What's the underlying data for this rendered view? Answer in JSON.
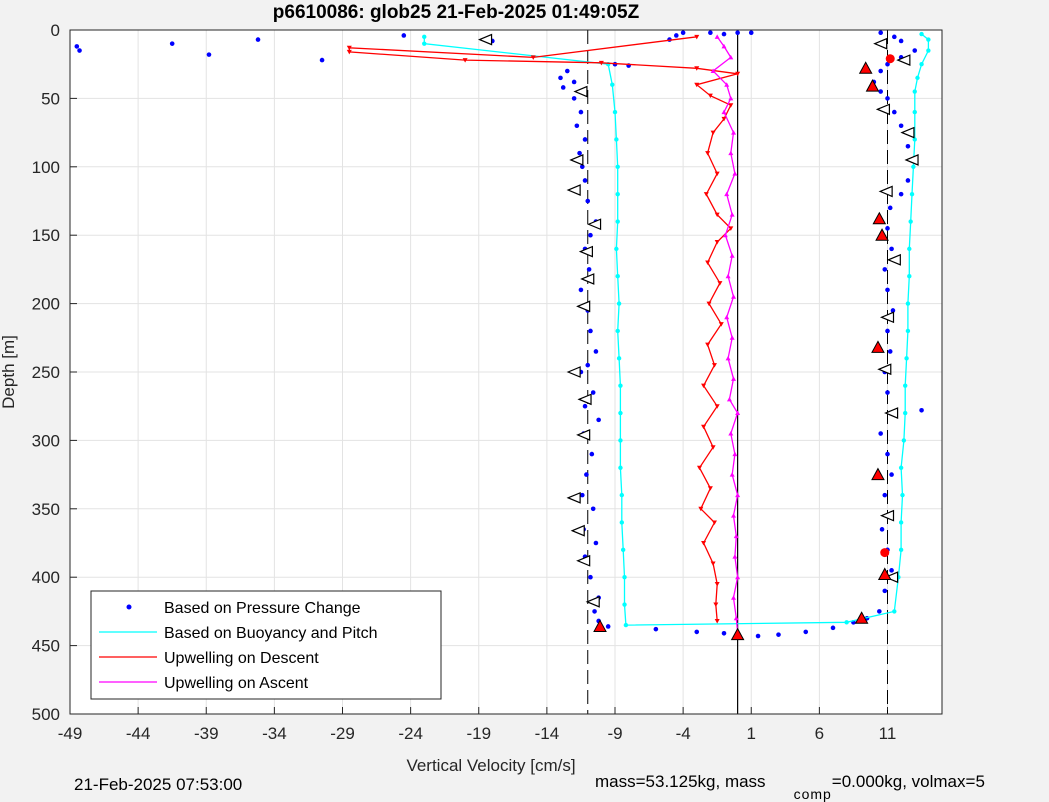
{
  "chart_data": {
    "type": "scatter",
    "title": "p6610086: glob25 21-Feb-2025 01:49:05Z",
    "xlabel": "Vertical Velocity [cm/s]",
    "ylabel": "Depth [m]",
    "xlim": [
      -49,
      15
    ],
    "ylim": [
      0,
      500
    ],
    "y_reversed": true,
    "grid": true,
    "xticks": [
      -49,
      -44,
      -39,
      -34,
      -29,
      -24,
      -19,
      -14,
      -9,
      -4,
      1,
      6,
      11
    ],
    "yticks": [
      0,
      50,
      100,
      150,
      200,
      250,
      300,
      350,
      400,
      450,
      500
    ],
    "reference_lines": {
      "dashed_x": [
        -11,
        11
      ],
      "solid_x": [
        0
      ]
    },
    "legend": {
      "location": "bottom-left",
      "entries": [
        {
          "label": "Based on Pressure Change",
          "color": "#0000ff",
          "marker": "dot"
        },
        {
          "label": "Based on Buoyancy and Pitch",
          "color": "#00ffff",
          "marker": "line"
        },
        {
          "label": "Upwelling on Descent",
          "color": "#ff0000",
          "marker": "line"
        },
        {
          "label": "Upwelling on Ascent",
          "color": "#ff00ff",
          "marker": "line"
        }
      ]
    },
    "series": [
      {
        "name": "Based on Pressure Change",
        "color": "#0000ff",
        "points": [
          [
            -48.5,
            12
          ],
          [
            -48.3,
            15
          ],
          [
            -41.5,
            10
          ],
          [
            -38.8,
            18
          ],
          [
            -35.2,
            7
          ],
          [
            -30.5,
            22
          ],
          [
            -24.5,
            4
          ],
          [
            -18,
            8
          ],
          [
            -12.5,
            30
          ],
          [
            -13,
            35
          ],
          [
            -12.8,
            42
          ],
          [
            -12,
            38
          ],
          [
            -11.5,
            45
          ],
          [
            -12,
            50
          ],
          [
            -11.5,
            60
          ],
          [
            -11.8,
            70
          ],
          [
            -11.2,
            80
          ],
          [
            -11.6,
            90
          ],
          [
            -11.4,
            100
          ],
          [
            -11.2,
            110
          ],
          [
            -11.8,
            117
          ],
          [
            -11,
            125
          ],
          [
            -10.4,
            140
          ],
          [
            -10.8,
            150
          ],
          [
            -11.2,
            160
          ],
          [
            -10.9,
            175
          ],
          [
            -11.5,
            190
          ],
          [
            -11.0,
            205
          ],
          [
            -10.8,
            220
          ],
          [
            -10.4,
            235
          ],
          [
            -11.0,
            245
          ],
          [
            -11.5,
            250
          ],
          [
            -10.6,
            265
          ],
          [
            -11.2,
            275
          ],
          [
            -10.2,
            285
          ],
          [
            -11.3,
            295
          ],
          [
            -10.7,
            310
          ],
          [
            -11.1,
            325
          ],
          [
            -11.4,
            340
          ],
          [
            -10.6,
            350
          ],
          [
            -11.3,
            365
          ],
          [
            -10.4,
            375
          ],
          [
            -11.2,
            385
          ],
          [
            -10.8,
            400
          ],
          [
            -10.2,
            415
          ],
          [
            -10.5,
            425
          ],
          [
            -10.2,
            432
          ],
          [
            -9.5,
            436
          ],
          [
            -6,
            438
          ],
          [
            -3,
            440
          ],
          [
            -1,
            441
          ],
          [
            0,
            443
          ],
          [
            1.5,
            443
          ],
          [
            3,
            442
          ],
          [
            5,
            440
          ],
          [
            7,
            437
          ],
          [
            8.5,
            433
          ],
          [
            9.5,
            430
          ],
          [
            10.4,
            425
          ],
          [
            10.8,
            410
          ],
          [
            11.3,
            395
          ],
          [
            11.0,
            380
          ],
          [
            10.6,
            365
          ],
          [
            11.2,
            355
          ],
          [
            10.8,
            340
          ],
          [
            11.3,
            325
          ],
          [
            11.0,
            310
          ],
          [
            10.5,
            295
          ],
          [
            11.2,
            280
          ],
          [
            11.0,
            265
          ],
          [
            10.8,
            250
          ],
          [
            11.2,
            235
          ],
          [
            11.0,
            220
          ],
          [
            11.4,
            205
          ],
          [
            11.0,
            190
          ],
          [
            10.8,
            175
          ],
          [
            11.3,
            160
          ],
          [
            11.0,
            145
          ],
          [
            11.2,
            130
          ],
          [
            12,
            120
          ],
          [
            12.5,
            110
          ],
          [
            13,
            95
          ],
          [
            12.5,
            85
          ],
          [
            12,
            70
          ],
          [
            11.5,
            60
          ],
          [
            11.0,
            50
          ],
          [
            10.5,
            45
          ],
          [
            10,
            38
          ],
          [
            10.5,
            30
          ],
          [
            11,
            25
          ],
          [
            12,
            20
          ],
          [
            13,
            15
          ],
          [
            12,
            8
          ],
          [
            11.5,
            5
          ],
          [
            10.5,
            2
          ],
          [
            13.5,
            278
          ],
          [
            -4,
            2
          ],
          [
            -2,
            2
          ],
          [
            -1,
            3
          ],
          [
            0,
            2
          ],
          [
            1,
            2
          ],
          [
            -5,
            7
          ],
          [
            -4.5,
            4
          ],
          [
            -9,
            25
          ],
          [
            -8,
            26
          ]
        ]
      },
      {
        "name": "Based on Buoyancy and Pitch",
        "color": "#00ffff",
        "points": [
          [
            -23,
            5
          ],
          [
            -23,
            10
          ],
          [
            -9.5,
            25
          ],
          [
            -9.2,
            40
          ],
          [
            -9.0,
            60
          ],
          [
            -8.9,
            80
          ],
          [
            -8.8,
            100
          ],
          [
            -8.8,
            120
          ],
          [
            -8.8,
            140
          ],
          [
            -8.9,
            160
          ],
          [
            -8.8,
            180
          ],
          [
            -8.7,
            200
          ],
          [
            -8.8,
            220
          ],
          [
            -8.7,
            240
          ],
          [
            -8.6,
            260
          ],
          [
            -8.6,
            280
          ],
          [
            -8.6,
            300
          ],
          [
            -8.6,
            320
          ],
          [
            -8.5,
            340
          ],
          [
            -8.5,
            360
          ],
          [
            -8.4,
            380
          ],
          [
            -8.3,
            400
          ],
          [
            -8.3,
            420
          ],
          [
            -8.2,
            435
          ],
          [
            8.0,
            433
          ],
          [
            11.5,
            425
          ],
          [
            11.8,
            400
          ],
          [
            12.0,
            380
          ],
          [
            12.0,
            360
          ],
          [
            12.1,
            340
          ],
          [
            12.0,
            320
          ],
          [
            12.2,
            300
          ],
          [
            12.3,
            280
          ],
          [
            12.3,
            260
          ],
          [
            12.4,
            240
          ],
          [
            12.5,
            220
          ],
          [
            12.5,
            200
          ],
          [
            12.6,
            180
          ],
          [
            12.6,
            160
          ],
          [
            12.7,
            140
          ],
          [
            12.8,
            120
          ],
          [
            12.9,
            100
          ],
          [
            13.0,
            80
          ],
          [
            13.0,
            60
          ],
          [
            13.0,
            45
          ],
          [
            13.2,
            35
          ],
          [
            13.5,
            25
          ],
          [
            14,
            15
          ],
          [
            14,
            7
          ],
          [
            13.5,
            3
          ]
        ]
      },
      {
        "name": "Upwelling on Descent",
        "color": "#ff0000",
        "points": [
          [
            -3,
            5
          ],
          [
            -15,
            20
          ],
          [
            -28.5,
            13
          ],
          [
            -28.5,
            16
          ],
          [
            -20,
            22
          ],
          [
            -10,
            24
          ],
          [
            -3,
            28
          ],
          [
            0,
            32
          ],
          [
            -3,
            40
          ],
          [
            -2,
            48
          ],
          [
            -0.5,
            55
          ],
          [
            -1,
            65
          ],
          [
            -1.8,
            75
          ],
          [
            -2.2,
            90
          ],
          [
            -1.5,
            105
          ],
          [
            -2.3,
            120
          ],
          [
            -1.5,
            135
          ],
          [
            -0.5,
            145
          ],
          [
            -1.5,
            155
          ],
          [
            -2.2,
            170
          ],
          [
            -1.3,
            185
          ],
          [
            -2.1,
            200
          ],
          [
            -1.2,
            215
          ],
          [
            -2.2,
            230
          ],
          [
            -1.7,
            245
          ],
          [
            -2.5,
            260
          ],
          [
            -1.5,
            275
          ],
          [
            -2.5,
            290
          ],
          [
            -1.8,
            305
          ],
          [
            -2.8,
            320
          ],
          [
            -2.0,
            335
          ],
          [
            -2.7,
            350
          ],
          [
            -1.7,
            360
          ],
          [
            -2.5,
            375
          ],
          [
            -1.8,
            390
          ],
          [
            -1.5,
            405
          ],
          [
            -1.6,
            420
          ],
          [
            -1.5,
            432
          ]
        ]
      },
      {
        "name": "Upwelling on Ascent",
        "color": "#ff00ff",
        "points": [
          [
            -1.5,
            5
          ],
          [
            -1.0,
            12
          ],
          [
            -0.5,
            20
          ],
          [
            -1.8,
            30
          ],
          [
            -0.8,
            40
          ],
          [
            -0.5,
            50
          ],
          [
            -1.0,
            60
          ],
          [
            -0.3,
            75
          ],
          [
            -0.5,
            90
          ],
          [
            -0.2,
            105
          ],
          [
            -0.8,
            120
          ],
          [
            -0.4,
            135
          ],
          [
            -0.9,
            150
          ],
          [
            -0.4,
            165
          ],
          [
            -0.7,
            180
          ],
          [
            -0.3,
            195
          ],
          [
            -0.8,
            210
          ],
          [
            -0.4,
            225
          ],
          [
            -0.7,
            240
          ],
          [
            -0.3,
            255
          ],
          [
            -0.6,
            270
          ],
          [
            0,
            280
          ],
          [
            -0.5,
            295
          ],
          [
            -0.2,
            310
          ],
          [
            -0.4,
            325
          ],
          [
            0,
            340
          ],
          [
            -0.3,
            355
          ],
          [
            -0.1,
            370
          ],
          [
            -0.2,
            385
          ],
          [
            0,
            400
          ],
          [
            -0.3,
            415
          ],
          [
            -0.1,
            430
          ],
          [
            0,
            440
          ]
        ]
      }
    ],
    "markers": [
      {
        "shape": "triangle-left",
        "color": "#000000",
        "points": [
          [
            -18.5,
            7
          ],
          [
            -11.5,
            45
          ],
          [
            -11.8,
            95
          ],
          [
            -12,
            117
          ],
          [
            -10.5,
            142
          ],
          [
            -11.1,
            162
          ],
          [
            -11.0,
            182
          ],
          [
            -11.3,
            202
          ],
          [
            -12,
            250
          ],
          [
            -11.2,
            270
          ],
          [
            -11.3,
            296
          ],
          [
            -12,
            342
          ],
          [
            -11.7,
            366
          ],
          [
            -11.3,
            388
          ],
          [
            -10.6,
            418
          ],
          [
            10.7,
            58
          ],
          [
            12.5,
            75
          ],
          [
            12.8,
            95
          ],
          [
            10.9,
            118
          ],
          [
            11.5,
            168
          ],
          [
            11.0,
            210
          ],
          [
            10.8,
            248
          ],
          [
            11.3,
            280
          ],
          [
            11.0,
            355
          ],
          [
            11.3,
            400
          ],
          [
            10.5,
            10
          ],
          [
            12.2,
            22
          ]
        ]
      },
      {
        "shape": "triangle-up",
        "color": "#ff0000",
        "points": [
          [
            -10.1,
            436
          ],
          [
            0,
            442
          ],
          [
            9.1,
            430
          ],
          [
            10.4,
            138
          ],
          [
            10.6,
            150
          ],
          [
            10.3,
            232
          ],
          [
            10.3,
            325
          ],
          [
            10.8,
            398
          ],
          [
            9.9,
            41
          ],
          [
            9.4,
            28
          ]
        ]
      },
      {
        "shape": "circle",
        "color": "#ff0000",
        "points": [
          [
            11.2,
            21
          ],
          [
            10.8,
            382
          ]
        ]
      }
    ]
  },
  "footer": {
    "datetime": "21-Feb-2025 07:53:00",
    "mass_text": "mass=53.125kg, mass",
    "comp_subscript": "comp",
    "tail_text": "=0.000kg, volmax=5"
  }
}
